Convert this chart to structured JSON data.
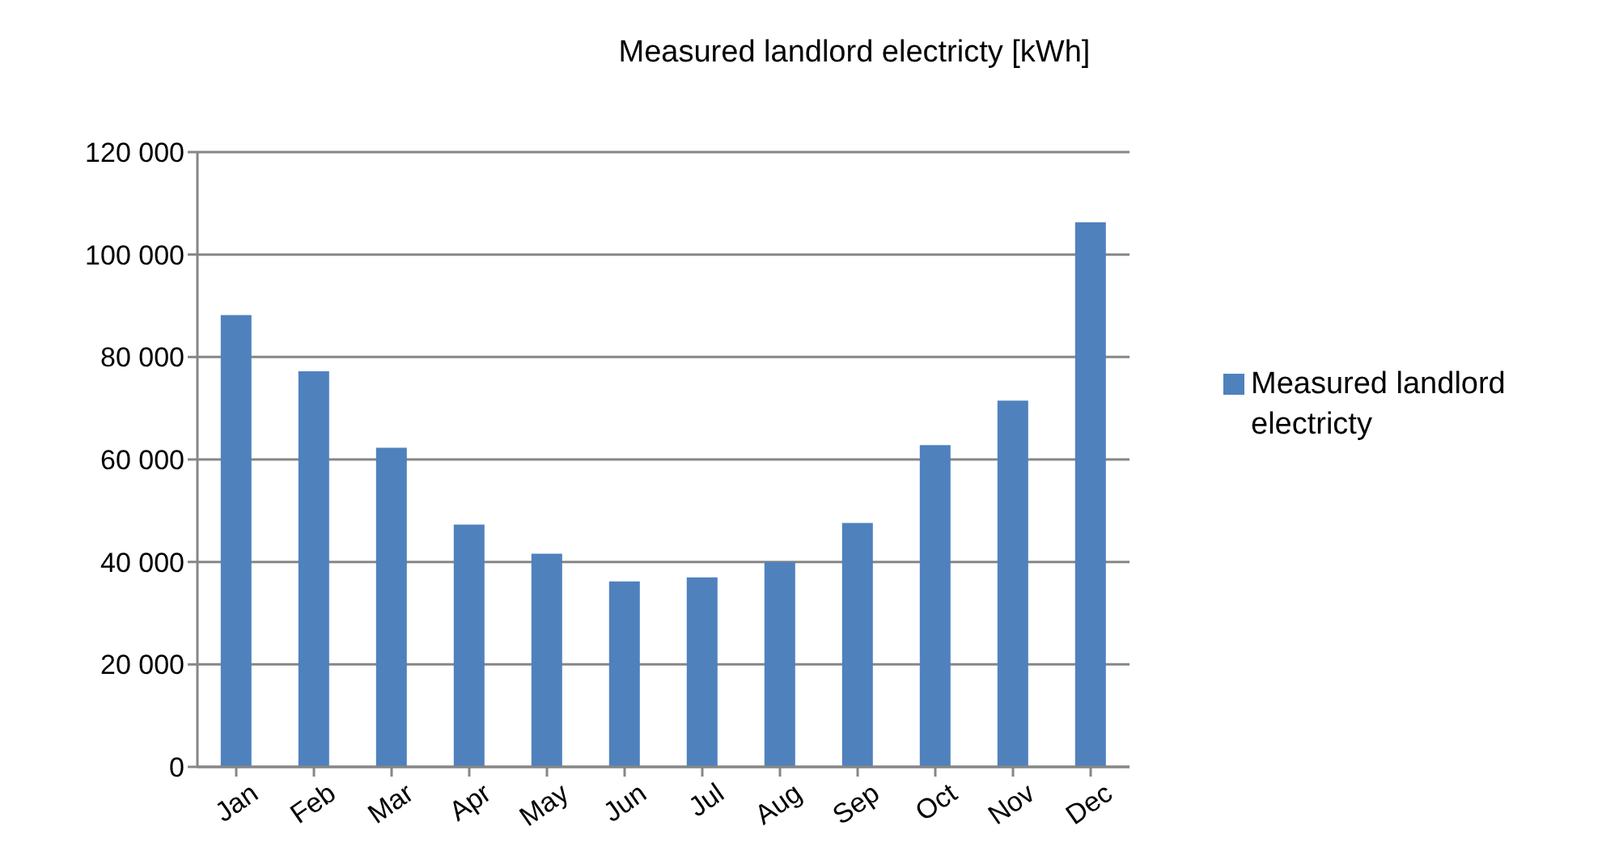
{
  "chart_data": {
    "type": "bar",
    "title": "Measured landlord electricty [kWh]",
    "categories": [
      "Jan",
      "Feb",
      "Mar",
      "Apr",
      "May",
      "Jun",
      "Jul",
      "Aug",
      "Sep",
      "Oct",
      "Nov",
      "Dec"
    ],
    "series": [
      {
        "name": "Measured landlord electricty",
        "color": "#4f81bd",
        "values": [
          88200,
          77200,
          62300,
          47300,
          41600,
          36200,
          37000,
          40000,
          47600,
          62800,
          71500,
          106300
        ]
      }
    ],
    "ylim": [
      0,
      120000
    ],
    "yticks": [
      {
        "value": 0,
        "label": "0"
      },
      {
        "value": 20000,
        "label": "20 000"
      },
      {
        "value": 40000,
        "label": "40 000"
      },
      {
        "value": 60000,
        "label": "60 000"
      },
      {
        "value": 80000,
        "label": "80 000"
      },
      {
        "value": 100000,
        "label": "100 000"
      },
      {
        "value": 120000,
        "label": "120 000"
      }
    ],
    "grid": "y",
    "legend": "right"
  }
}
